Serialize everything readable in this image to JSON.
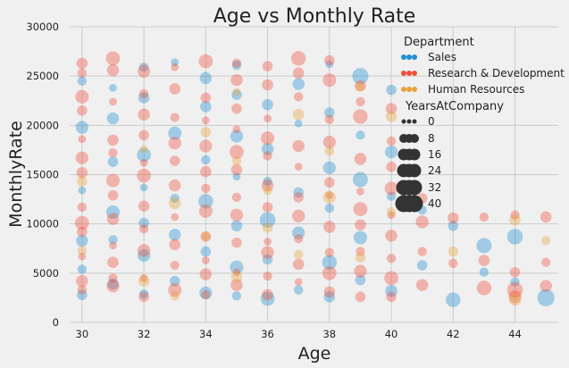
{
  "chart_data": {
    "type": "scatter",
    "title": "Age vs Monthly Rate",
    "xlabel": "Age",
    "ylabel": "MonthlyRate",
    "xlim": [
      29.6,
      45.4
    ],
    "ylim": [
      0,
      30000
    ],
    "xticks": [
      30,
      32,
      34,
      36,
      38,
      40,
      42,
      44
    ],
    "yticks": [
      0,
      5000,
      10000,
      15000,
      20000,
      25000,
      30000
    ],
    "grid": true,
    "legend": {
      "placement": "top-right",
      "hue_title": "Department",
      "size_title": "YearsAtCompany",
      "size_entries": [
        "0",
        "8",
        "16",
        "24",
        "32",
        "40"
      ]
    },
    "series": [
      {
        "name": "Sales",
        "color": "#1f8fd0",
        "points": [
          [
            30,
            2800,
            3
          ],
          [
            30,
            5400,
            2
          ],
          [
            30,
            8300,
            5
          ],
          [
            30,
            13400,
            1
          ],
          [
            30,
            19800,
            6
          ],
          [
            30,
            24500,
            2
          ],
          [
            31,
            3900,
            4
          ],
          [
            31,
            8400,
            2
          ],
          [
            31,
            11200,
            7
          ],
          [
            31,
            16300,
            3
          ],
          [
            31,
            20700,
            5
          ],
          [
            31,
            23800,
            1
          ],
          [
            32,
            2900,
            2
          ],
          [
            32,
            6800,
            6
          ],
          [
            32,
            10100,
            3
          ],
          [
            32,
            13700,
            1
          ],
          [
            32,
            17000,
            8
          ],
          [
            32,
            22800,
            4
          ],
          [
            32,
            25900,
            2
          ],
          [
            33,
            4200,
            3
          ],
          [
            33,
            8900,
            5
          ],
          [
            33,
            12600,
            2
          ],
          [
            33,
            19200,
            7
          ],
          [
            33,
            26400,
            1
          ],
          [
            34,
            3000,
            6
          ],
          [
            34,
            7200,
            3
          ],
          [
            34,
            12300,
            9
          ],
          [
            34,
            16500,
            2
          ],
          [
            34,
            21900,
            4
          ],
          [
            34,
            24800,
            5
          ],
          [
            35,
            2700,
            2
          ],
          [
            35,
            5600,
            7
          ],
          [
            35,
            9800,
            4
          ],
          [
            35,
            14800,
            1
          ],
          [
            35,
            18900,
            6
          ],
          [
            35,
            23100,
            3
          ],
          [
            35,
            26100,
            2
          ],
          [
            36,
            2400,
            8
          ],
          [
            36,
            6400,
            3
          ],
          [
            36,
            10400,
            11
          ],
          [
            36,
            14300,
            2
          ],
          [
            36,
            17600,
            5
          ],
          [
            36,
            22100,
            4
          ],
          [
            37,
            3300,
            2
          ],
          [
            37,
            9100,
            6
          ],
          [
            37,
            13200,
            3
          ],
          [
            37,
            20200,
            1
          ],
          [
            37,
            24200,
            5
          ],
          [
            38,
            2600,
            4
          ],
          [
            38,
            6100,
            9
          ],
          [
            38,
            11600,
            2
          ],
          [
            38,
            15700,
            6
          ],
          [
            38,
            21300,
            3
          ],
          [
            38,
            26200,
            1
          ],
          [
            39,
            4300,
            3
          ],
          [
            39,
            8600,
            7
          ],
          [
            39,
            14500,
            10
          ],
          [
            39,
            25000,
            12
          ],
          [
            39,
            19000,
            2
          ],
          [
            40,
            3200,
            5
          ],
          [
            40,
            12800,
            2
          ],
          [
            40,
            17300,
            6
          ],
          [
            40,
            23600,
            3
          ],
          [
            41,
            5800,
            3
          ],
          [
            41,
            11400,
            2
          ],
          [
            42,
            2300,
            9
          ],
          [
            42,
            9800,
            3
          ],
          [
            43,
            7800,
            10
          ],
          [
            43,
            5100,
            2
          ],
          [
            44,
            8700,
            11
          ],
          [
            44,
            4100,
            2
          ],
          [
            45,
            2500,
            14
          ]
        ]
      },
      {
        "name": "Research & Development",
        "color": "#f0503c",
        "points": [
          [
            30,
            3300,
            2
          ],
          [
            30,
            4200,
            5
          ],
          [
            30,
            6700,
            1
          ],
          [
            30,
            9200,
            3
          ],
          [
            30,
            10100,
            8
          ],
          [
            30,
            11700,
            2
          ],
          [
            30,
            15200,
            4
          ],
          [
            30,
            16700,
            6
          ],
          [
            30,
            18600,
            1
          ],
          [
            30,
            21500,
            3
          ],
          [
            30,
            22900,
            7
          ],
          [
            30,
            25300,
            2
          ],
          [
            30,
            26300,
            4
          ],
          [
            31,
            3700,
            6
          ],
          [
            31,
            4500,
            2
          ],
          [
            31,
            6100,
            4
          ],
          [
            31,
            7800,
            1
          ],
          [
            31,
            10500,
            5
          ],
          [
            31,
            12900,
            3
          ],
          [
            31,
            14400,
            7
          ],
          [
            31,
            17200,
            2
          ],
          [
            31,
            18500,
            4
          ],
          [
            31,
            22400,
            1
          ],
          [
            31,
            25600,
            5
          ],
          [
            31,
            26800,
            8
          ],
          [
            32,
            2600,
            3
          ],
          [
            32,
            4500,
            1
          ],
          [
            32,
            7300,
            6
          ],
          [
            32,
            9500,
            2
          ],
          [
            32,
            11800,
            4
          ],
          [
            32,
            14900,
            8
          ],
          [
            32,
            16200,
            1
          ],
          [
            32,
            19000,
            3
          ],
          [
            32,
            21100,
            5
          ],
          [
            32,
            23200,
            2
          ],
          [
            32,
            25500,
            6
          ],
          [
            33,
            3300,
            7
          ],
          [
            33,
            5800,
            2
          ],
          [
            33,
            7900,
            4
          ],
          [
            33,
            10700,
            1
          ],
          [
            33,
            13900,
            5
          ],
          [
            33,
            16400,
            3
          ],
          [
            33,
            18200,
            6
          ],
          [
            33,
            20800,
            2
          ],
          [
            33,
            23700,
            4
          ],
          [
            33,
            25900,
            1
          ],
          [
            34,
            2800,
            2
          ],
          [
            34,
            4900,
            5
          ],
          [
            34,
            6300,
            1
          ],
          [
            34,
            8700,
            3
          ],
          [
            34,
            11300,
            7
          ],
          [
            34,
            13600,
            2
          ],
          [
            34,
            15300,
            4
          ],
          [
            34,
            17900,
            6
          ],
          [
            34,
            20500,
            1
          ],
          [
            34,
            22800,
            3
          ],
          [
            34,
            26500,
            8
          ],
          [
            35,
            3800,
            5
          ],
          [
            35,
            5100,
            1
          ],
          [
            35,
            8100,
            3
          ],
          [
            35,
            10900,
            6
          ],
          [
            35,
            12700,
            2
          ],
          [
            35,
            15500,
            4
          ],
          [
            35,
            17300,
            8
          ],
          [
            35,
            19600,
            1
          ],
          [
            35,
            21700,
            3
          ],
          [
            35,
            24600,
            5
          ],
          [
            35,
            26300,
            2
          ],
          [
            36,
            2800,
            4
          ],
          [
            36,
            4700,
            2
          ],
          [
            36,
            7100,
            6
          ],
          [
            36,
            8200,
            1
          ],
          [
            36,
            11700,
            3
          ],
          [
            36,
            13900,
            5
          ],
          [
            36,
            16900,
            2
          ],
          [
            36,
            18700,
            7
          ],
          [
            36,
            20700,
            1
          ],
          [
            36,
            24100,
            4
          ],
          [
            36,
            26000,
            3
          ],
          [
            37,
            4100,
            1
          ],
          [
            37,
            5900,
            4
          ],
          [
            37,
            8500,
            2
          ],
          [
            37,
            10800,
            6
          ],
          [
            37,
            12700,
            3
          ],
          [
            37,
            15800,
            1
          ],
          [
            37,
            17900,
            5
          ],
          [
            37,
            22900,
            2
          ],
          [
            37,
            25300,
            4
          ],
          [
            37,
            26800,
            9
          ],
          [
            38,
            3100,
            4
          ],
          [
            38,
            5000,
            8
          ],
          [
            38,
            7100,
            2
          ],
          [
            38,
            9700,
            5
          ],
          [
            38,
            12900,
            1
          ],
          [
            38,
            14200,
            3
          ],
          [
            38,
            18300,
            6
          ],
          [
            38,
            20600,
            2
          ],
          [
            38,
            24600,
            7
          ],
          [
            38,
            26600,
            3
          ],
          [
            39,
            2600,
            3
          ],
          [
            39,
            5200,
            6
          ],
          [
            39,
            7200,
            2
          ],
          [
            39,
            9900,
            4
          ],
          [
            39,
            11500,
            8
          ],
          [
            39,
            13300,
            1
          ],
          [
            39,
            16600,
            5
          ],
          [
            39,
            20900,
            9
          ],
          [
            39,
            22400,
            2
          ],
          [
            39,
            24000,
            4
          ],
          [
            40,
            2600,
            3
          ],
          [
            40,
            4500,
            8
          ],
          [
            40,
            6500,
            2
          ],
          [
            40,
            8800,
            5
          ],
          [
            40,
            10900,
            1
          ],
          [
            40,
            13600,
            7
          ],
          [
            40,
            15800,
            3
          ],
          [
            40,
            18400,
            2
          ],
          [
            40,
            21700,
            4
          ],
          [
            41,
            3800,
            5
          ],
          [
            41,
            7200,
            2
          ],
          [
            41,
            10200,
            6
          ],
          [
            41,
            12600,
            3
          ],
          [
            42,
            10600,
            4
          ],
          [
            42,
            6000,
            2
          ],
          [
            43,
            3500,
            9
          ],
          [
            43,
            6300,
            4
          ],
          [
            43,
            10700,
            2
          ],
          [
            44,
            2600,
            6
          ],
          [
            44,
            3300,
            11
          ],
          [
            44,
            5100,
            3
          ],
          [
            44,
            10900,
            2
          ],
          [
            45,
            3700,
            5
          ],
          [
            45,
            6100,
            2
          ],
          [
            45,
            10700,
            4
          ]
        ]
      },
      {
        "name": "Human Resources",
        "color": "#e8a23c",
        "points": [
          [
            30,
            14300,
            3
          ],
          [
            30,
            7300,
            2
          ],
          [
            32,
            4200,
            4
          ],
          [
            32,
            17600,
            1
          ],
          [
            33,
            2700,
            2
          ],
          [
            33,
            12100,
            5
          ],
          [
            34,
            8800,
            2
          ],
          [
            34,
            19300,
            3
          ],
          [
            35,
            4600,
            4
          ],
          [
            35,
            16400,
            2
          ],
          [
            35,
            23400,
            1
          ],
          [
            36,
            9600,
            3
          ],
          [
            36,
            13400,
            2
          ],
          [
            37,
            6900,
            2
          ],
          [
            37,
            21100,
            4
          ],
          [
            38,
            12700,
            6
          ],
          [
            38,
            17400,
            2
          ],
          [
            39,
            23900,
            2
          ],
          [
            39,
            6600,
            3
          ],
          [
            40,
            20900,
            4
          ],
          [
            40,
            11200,
            2
          ],
          [
            42,
            7200,
            3
          ],
          [
            44,
            2300,
            5
          ],
          [
            44,
            10400,
            4
          ],
          [
            45,
            8300,
            2
          ]
        ]
      }
    ]
  }
}
